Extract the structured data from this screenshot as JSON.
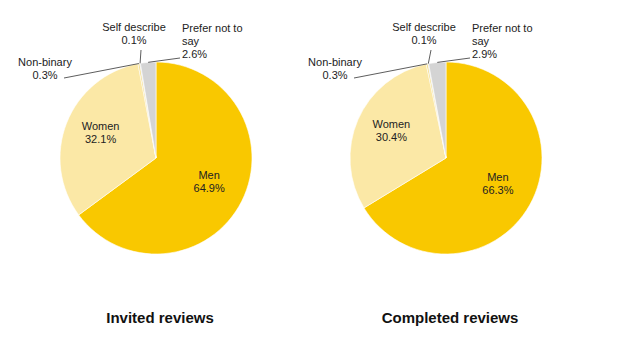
{
  "chart_data": [
    {
      "type": "pie",
      "title": "Invited reviews",
      "categories": [
        "Men",
        "Women",
        "Non-binary",
        "Self describe",
        "Prefer not to say"
      ],
      "values": [
        64.9,
        32.1,
        0.3,
        0.1,
        2.6
      ],
      "value_labels": [
        "64.9%",
        "32.1%",
        "0.3%",
        "0.1%",
        "2.6%"
      ],
      "colors": [
        "#f9c800",
        "#fbe8a6",
        "#f3dc8a",
        "#bdbdbd",
        "#d4d4d4"
      ],
      "data_labels": true
    },
    {
      "type": "pie",
      "title": "Completed reviews",
      "categories": [
        "Men",
        "Women",
        "Non-binary",
        "Self describe",
        "Prefer not to say"
      ],
      "values": [
        66.3,
        30.4,
        0.3,
        0.1,
        2.9
      ],
      "value_labels": [
        "66.3%",
        "30.4%",
        "0.3%",
        "0.1%",
        "2.9%"
      ],
      "colors": [
        "#f9c800",
        "#fbe8a6",
        "#f3dc8a",
        "#bdbdbd",
        "#d4d4d4"
      ],
      "data_labels": true
    }
  ]
}
